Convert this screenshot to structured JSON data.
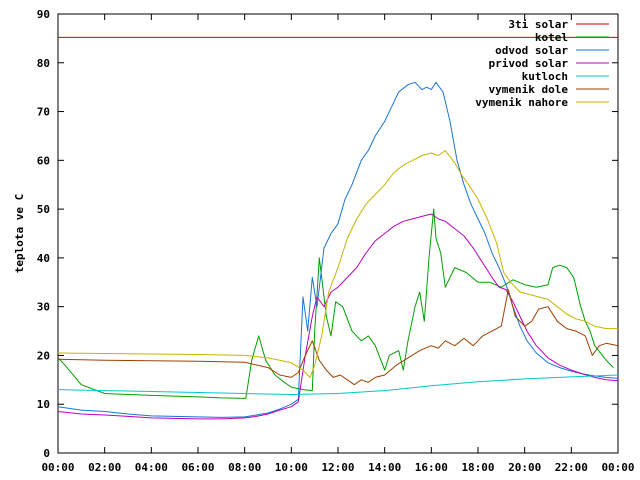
{
  "chart_data": {
    "type": "line",
    "title": "",
    "xlabel": "",
    "ylabel": "teplota ve C",
    "xlim": [
      0,
      24
    ],
    "ylim": [
      0,
      90
    ],
    "grid": false,
    "legend_position": "top-right",
    "x_ticks": [
      0,
      2,
      4,
      6,
      8,
      10,
      12,
      14,
      16,
      18,
      20,
      22,
      24
    ],
    "x_tick_labels": [
      "00:00",
      "02:00",
      "04:00",
      "06:00",
      "08:00",
      "10:00",
      "12:00",
      "14:00",
      "16:00",
      "18:00",
      "20:00",
      "22:00",
      "00:00"
    ],
    "y_ticks": [
      0,
      10,
      20,
      30,
      40,
      50,
      60,
      70,
      80,
      90
    ],
    "y_tick_labels": [
      "0",
      "10",
      "20",
      "30",
      "40",
      "50",
      "60",
      "70",
      "80",
      "90"
    ],
    "series": [
      {
        "name": "3ti solar",
        "color": "#cc0000",
        "x": [
          0,
          24
        ],
        "y": [
          85.2,
          85.2
        ]
      },
      {
        "name": "kotel",
        "color": "#00a000",
        "x": [
          0,
          0.3,
          1,
          2,
          4,
          6,
          7,
          8.05,
          8.3,
          8.6,
          8.9,
          9.3,
          9.7,
          10,
          10.5,
          10.9,
          11,
          11.2,
          11.4,
          11.5,
          11.7,
          11.9,
          12.2,
          12.6,
          13,
          13.3,
          13.6,
          14,
          14.2,
          14.6,
          14.8,
          15,
          15.3,
          15.5,
          15.7,
          15.9,
          16.1,
          16.2,
          16.4,
          16.6,
          17,
          17.5,
          18,
          18.5,
          19,
          19.5,
          20,
          20.5,
          21,
          21.2,
          21.5,
          21.8,
          22.1,
          22.4,
          22.6,
          22.8,
          23,
          23.5,
          23.8
        ],
        "y": [
          19.5,
          18,
          14,
          12.2,
          11.8,
          11.5,
          11.3,
          11.2,
          19,
          24,
          19,
          16,
          14.5,
          13.5,
          13,
          12.8,
          25,
          40,
          32,
          28,
          24,
          31,
          30,
          25,
          23,
          24,
          22,
          17,
          20,
          21,
          17,
          23,
          30,
          33,
          27,
          40,
          50,
          44,
          41,
          34,
          38,
          37,
          35,
          35,
          34,
          35.5,
          34.5,
          34,
          34.5,
          38,
          38.5,
          38,
          36,
          30,
          27,
          25,
          22,
          19,
          17.5
        ]
      },
      {
        "name": "odvod solar",
        "color": "#1a75d2",
        "x": [
          0,
          1,
          2,
          3,
          4,
          5,
          6,
          7,
          8,
          8.5,
          9,
          9.5,
          10,
          10.3,
          10.5,
          10.7,
          10.9,
          11.1,
          11.4,
          11.7,
          12,
          12.3,
          12.6,
          13,
          13.3,
          13.6,
          14,
          14.3,
          14.6,
          15,
          15.3,
          15.6,
          15.8,
          16,
          16.2,
          16.5,
          16.8,
          17.1,
          17.4,
          17.7,
          18,
          18.3,
          18.6,
          18.9,
          19.2,
          19.5,
          19.8,
          20.1,
          20.5,
          21,
          21.5,
          22,
          22.5,
          23,
          23.5,
          24
        ],
        "y": [
          9.5,
          8.8,
          8.5,
          8,
          7.6,
          7.5,
          7.4,
          7.3,
          7.4,
          7.8,
          8.2,
          9,
          10,
          11,
          32,
          25,
          36,
          30,
          42,
          45,
          47,
          52,
          55,
          60,
          62,
          65,
          68,
          71,
          74,
          75.5,
          76,
          74.5,
          75,
          74.5,
          76,
          74,
          68,
          60,
          55,
          51,
          48,
          45,
          41,
          38,
          34.5,
          30,
          26,
          23,
          20.5,
          18.5,
          17.5,
          16.8,
          16.2,
          15.8,
          15.5,
          15.3
        ]
      },
      {
        "name": "privod solar",
        "color": "#c000c0",
        "x": [
          0,
          1,
          2,
          3,
          4,
          5,
          6,
          7,
          8,
          8.5,
          9,
          9.5,
          10,
          10.3,
          10.6,
          10.9,
          11.1,
          11.4,
          11.7,
          12,
          12.4,
          12.8,
          13.2,
          13.6,
          14,
          14.4,
          14.8,
          15.2,
          15.6,
          16,
          16.3,
          16.6,
          17,
          17.4,
          17.8,
          18.2,
          18.6,
          18.9,
          19.2,
          19.5,
          19.8,
          20.1,
          20.5,
          21,
          21.5,
          22,
          22.5,
          23,
          23.5,
          24
        ],
        "y": [
          8.5,
          8,
          7.8,
          7.5,
          7.2,
          7.1,
          7,
          7,
          7.2,
          7.5,
          8,
          8.8,
          9.5,
          10.5,
          20,
          28,
          32,
          30,
          33,
          34,
          36,
          38,
          41,
          43.5,
          45,
          46.5,
          47.5,
          48,
          48.5,
          49,
          48,
          47.5,
          46,
          44.5,
          42,
          39,
          36,
          34,
          33.5,
          31,
          28,
          25,
          22,
          19.5,
          18,
          17,
          16.2,
          15.5,
          15,
          14.8
        ]
      },
      {
        "name": "kutloch",
        "color": "#00c8c8",
        "x": [
          0,
          2,
          4,
          6,
          8,
          10,
          12,
          14,
          16,
          18,
          20,
          22,
          24
        ],
        "y": [
          13,
          12.8,
          12.6,
          12.4,
          12.2,
          12,
          12.2,
          12.8,
          13.8,
          14.6,
          15.2,
          15.6,
          16
        ]
      },
      {
        "name": "vymenik dole",
        "color": "#a04000",
        "x": [
          0,
          2,
          4,
          6,
          8,
          9,
          9.5,
          10,
          10.3,
          10.6,
          10.9,
          11.2,
          11.5,
          11.8,
          12.1,
          12.4,
          12.7,
          13,
          13.3,
          13.6,
          14,
          14.5,
          15,
          15.5,
          16,
          16.3,
          16.6,
          17,
          17.4,
          17.8,
          18.2,
          18.6,
          19,
          19.3,
          19.6,
          20,
          20.3,
          20.6,
          21,
          21.4,
          21.8,
          22.2,
          22.6,
          22.9,
          23.2,
          23.5,
          24
        ],
        "y": [
          19.2,
          19,
          18.9,
          18.8,
          18.6,
          17.5,
          16,
          15.5,
          16.5,
          20,
          23,
          19,
          17,
          15.5,
          16,
          15,
          14,
          15,
          14.5,
          15.5,
          16,
          18,
          19.5,
          21,
          22,
          21.5,
          23,
          22,
          23.5,
          22,
          24,
          25,
          26,
          33.5,
          28,
          26,
          27,
          29.5,
          30,
          27,
          25.5,
          25,
          24,
          20,
          22,
          22.5,
          22
        ]
      },
      {
        "name": "vymenik nahore",
        "color": "#c8b400",
        "x": [
          0,
          2,
          4,
          6,
          8,
          9,
          9.5,
          10,
          10.5,
          10.8,
          11,
          11.3,
          11.6,
          12,
          12.4,
          12.8,
          13.2,
          13.6,
          14,
          14.4,
          14.8,
          15.2,
          15.6,
          16,
          16.3,
          16.6,
          17,
          17.3,
          17.6,
          18,
          18.4,
          18.8,
          19.1,
          19.4,
          19.8,
          20.2,
          20.6,
          21,
          21.4,
          21.8,
          22.2,
          22.6,
          23,
          23.5,
          24
        ],
        "y": [
          20.5,
          20.4,
          20.3,
          20.2,
          20,
          19.5,
          19,
          18.5,
          17,
          15.5,
          18,
          24,
          33,
          38,
          44,
          48,
          51,
          53,
          55,
          57.5,
          59,
          60,
          61,
          61.5,
          61,
          62,
          59.5,
          57,
          55,
          52,
          48,
          43,
          37,
          35,
          33,
          32.5,
          32,
          31.5,
          30,
          28.5,
          27.5,
          27,
          26,
          25.5,
          25.5
        ]
      }
    ]
  }
}
